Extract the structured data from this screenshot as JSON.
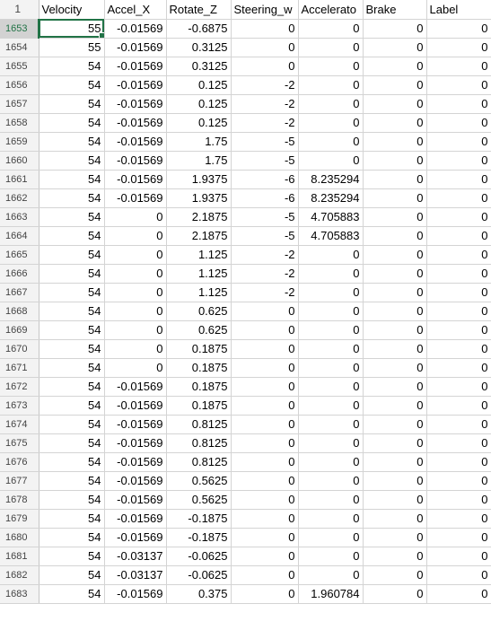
{
  "sheet": {
    "header_row_number": "1",
    "headers": [
      "Velocity",
      "Accel_X",
      "Rotate_Z",
      "Steering_w",
      "Accelerato",
      "Brake",
      "Label"
    ],
    "rows": [
      {
        "row": "1653",
        "cells": [
          "55",
          "-0.01569",
          "-0.6875",
          "0",
          "0",
          "0",
          "0"
        ]
      },
      {
        "row": "1654",
        "cells": [
          "55",
          "-0.01569",
          "0.3125",
          "0",
          "0",
          "0",
          "0"
        ]
      },
      {
        "row": "1655",
        "cells": [
          "54",
          "-0.01569",
          "0.3125",
          "0",
          "0",
          "0",
          "0"
        ]
      },
      {
        "row": "1656",
        "cells": [
          "54",
          "-0.01569",
          "0.125",
          "-2",
          "0",
          "0",
          "0"
        ]
      },
      {
        "row": "1657",
        "cells": [
          "54",
          "-0.01569",
          "0.125",
          "-2",
          "0",
          "0",
          "0"
        ]
      },
      {
        "row": "1658",
        "cells": [
          "54",
          "-0.01569",
          "0.125",
          "-2",
          "0",
          "0",
          "0"
        ]
      },
      {
        "row": "1659",
        "cells": [
          "54",
          "-0.01569",
          "1.75",
          "-5",
          "0",
          "0",
          "0"
        ]
      },
      {
        "row": "1660",
        "cells": [
          "54",
          "-0.01569",
          "1.75",
          "-5",
          "0",
          "0",
          "0"
        ]
      },
      {
        "row": "1661",
        "cells": [
          "54",
          "-0.01569",
          "1.9375",
          "-6",
          "8.235294",
          "0",
          "0"
        ]
      },
      {
        "row": "1662",
        "cells": [
          "54",
          "-0.01569",
          "1.9375",
          "-6",
          "8.235294",
          "0",
          "0"
        ]
      },
      {
        "row": "1663",
        "cells": [
          "54",
          "0",
          "2.1875",
          "-5",
          "4.705883",
          "0",
          "0"
        ]
      },
      {
        "row": "1664",
        "cells": [
          "54",
          "0",
          "2.1875",
          "-5",
          "4.705883",
          "0",
          "0"
        ]
      },
      {
        "row": "1665",
        "cells": [
          "54",
          "0",
          "1.125",
          "-2",
          "0",
          "0",
          "0"
        ]
      },
      {
        "row": "1666",
        "cells": [
          "54",
          "0",
          "1.125",
          "-2",
          "0",
          "0",
          "0"
        ]
      },
      {
        "row": "1667",
        "cells": [
          "54",
          "0",
          "1.125",
          "-2",
          "0",
          "0",
          "0"
        ]
      },
      {
        "row": "1668",
        "cells": [
          "54",
          "0",
          "0.625",
          "0",
          "0",
          "0",
          "0"
        ]
      },
      {
        "row": "1669",
        "cells": [
          "54",
          "0",
          "0.625",
          "0",
          "0",
          "0",
          "0"
        ]
      },
      {
        "row": "1670",
        "cells": [
          "54",
          "0",
          "0.1875",
          "0",
          "0",
          "0",
          "0"
        ]
      },
      {
        "row": "1671",
        "cells": [
          "54",
          "0",
          "0.1875",
          "0",
          "0",
          "0",
          "0"
        ]
      },
      {
        "row": "1672",
        "cells": [
          "54",
          "-0.01569",
          "0.1875",
          "0",
          "0",
          "0",
          "0"
        ]
      },
      {
        "row": "1673",
        "cells": [
          "54",
          "-0.01569",
          "0.1875",
          "0",
          "0",
          "0",
          "0"
        ]
      },
      {
        "row": "1674",
        "cells": [
          "54",
          "-0.01569",
          "0.8125",
          "0",
          "0",
          "0",
          "0"
        ]
      },
      {
        "row": "1675",
        "cells": [
          "54",
          "-0.01569",
          "0.8125",
          "0",
          "0",
          "0",
          "0"
        ]
      },
      {
        "row": "1676",
        "cells": [
          "54",
          "-0.01569",
          "0.8125",
          "0",
          "0",
          "0",
          "0"
        ]
      },
      {
        "row": "1677",
        "cells": [
          "54",
          "-0.01569",
          "0.5625",
          "0",
          "0",
          "0",
          "0"
        ]
      },
      {
        "row": "1678",
        "cells": [
          "54",
          "-0.01569",
          "0.5625",
          "0",
          "0",
          "0",
          "0"
        ]
      },
      {
        "row": "1679",
        "cells": [
          "54",
          "-0.01569",
          "-0.1875",
          "0",
          "0",
          "0",
          "0"
        ]
      },
      {
        "row": "1680",
        "cells": [
          "54",
          "-0.01569",
          "-0.1875",
          "0",
          "0",
          "0",
          "0"
        ]
      },
      {
        "row": "1681",
        "cells": [
          "54",
          "-0.03137",
          "-0.0625",
          "0",
          "0",
          "0",
          "0"
        ]
      },
      {
        "row": "1682",
        "cells": [
          "54",
          "-0.03137",
          "-0.0625",
          "0",
          "0",
          "0",
          "0"
        ]
      },
      {
        "row": "1683",
        "cells": [
          "54",
          "-0.01569",
          "0.375",
          "0",
          "1.960784",
          "0",
          "0"
        ]
      }
    ]
  }
}
